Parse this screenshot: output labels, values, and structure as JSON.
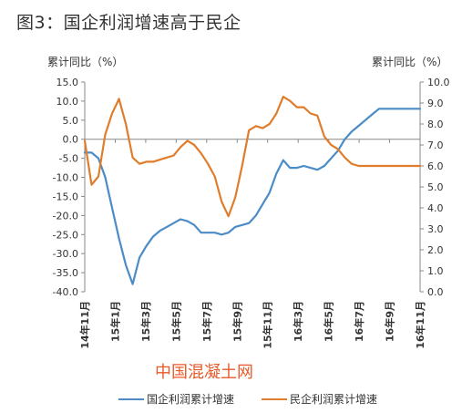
{
  "figure_title": "图3：国企利润增速高于民企",
  "watermark": "中国混凝土网",
  "colors": {
    "series1": "#4a8cc7",
    "series2": "#e07d2c",
    "axis": "#888888",
    "text": "#333333"
  },
  "chart_data": {
    "type": "line",
    "title": "图3：国企利润增速高于民企",
    "y_left_label": "累计同比（%）",
    "y_right_label": "累计同比（%）",
    "y_left_lim": [
      -40,
      15
    ],
    "y_right_lim": [
      0,
      10
    ],
    "y_left_ticks": [
      "15.0",
      "10.0",
      "5.0",
      "0.0",
      "-5.0",
      "-10.0",
      "-15.0",
      "-20.0",
      "-25.0",
      "-30.0",
      "-35.0",
      "-40.0"
    ],
    "y_right_ticks": [
      "10.0",
      "9.0",
      "8.0",
      "7.0",
      "6.0",
      "5.0",
      "4.0",
      "3.0",
      "2.0",
      "1.0",
      "0.0"
    ],
    "x_tick_labels": [
      "14年11月",
      "15年1月",
      "15年3月",
      "15年5月",
      "15年7月",
      "15年9月",
      "15年11月",
      "16年3月",
      "16年5月",
      "16年7月",
      "16年9月",
      "16年11月"
    ],
    "grid": false,
    "legend_position": "bottom",
    "series": [
      {
        "name": "国企利润累计增速",
        "axis": "left",
        "x": [
          0,
          0.5,
          1,
          1.5,
          2,
          2.5,
          3,
          3.5,
          4,
          4.5,
          5,
          5.5,
          6,
          6.5,
          7,
          7.5,
          8,
          8.5,
          9,
          9.5,
          10,
          10.5,
          11,
          11.5,
          12,
          12.5,
          13,
          13.5,
          14,
          14.5,
          15,
          15.5,
          16,
          16.5,
          17,
          17.5,
          18,
          18.5,
          19,
          19.5,
          20,
          20.5,
          21,
          21.5,
          22,
          22.5,
          23,
          23.5,
          24,
          24.5
        ],
        "values": [
          -3.5,
          -3.5,
          -5,
          -10,
          -18,
          -26,
          -33,
          -38,
          -31,
          -28,
          -25.5,
          -24,
          -23,
          -22,
          -21,
          -21.5,
          -22.5,
          -24.5,
          -24.5,
          -24.5,
          -25,
          -24.5,
          -23,
          -22.5,
          -22,
          -20,
          -17,
          -14,
          -9,
          -5.5,
          -7.5,
          -7.5,
          -7,
          -7.5,
          -8,
          -7,
          -5,
          -3,
          0,
          2,
          3.5,
          5,
          6.5,
          8,
          8,
          8,
          8,
          8,
          8,
          8
        ]
      },
      {
        "name": "民企利润累计增速",
        "axis": "right",
        "x": [
          0,
          0.5,
          1,
          1.5,
          2,
          2.5,
          3,
          3.5,
          4,
          4.5,
          5,
          5.5,
          6,
          6.5,
          7,
          7.5,
          8,
          8.5,
          9,
          9.5,
          10,
          10.5,
          11,
          11.5,
          12,
          12.5,
          13,
          13.5,
          14,
          14.5,
          15,
          15.5,
          16,
          16.5,
          17,
          17.5,
          18,
          18.5,
          19,
          19.5,
          20,
          20.5,
          21,
          21.5,
          22,
          22.5,
          23,
          23.5,
          24,
          24.5
        ],
        "values": [
          7.2,
          5.1,
          5.5,
          7.5,
          8.5,
          9.2,
          8.0,
          6.4,
          6.1,
          6.2,
          6.2,
          6.3,
          6.4,
          6.5,
          6.9,
          7.2,
          7.0,
          6.6,
          6.1,
          5.5,
          4.3,
          3.6,
          4.5,
          6.0,
          7.7,
          7.9,
          7.8,
          8.0,
          8.5,
          9.3,
          9.1,
          8.8,
          8.8,
          8.5,
          8.4,
          7.4,
          7.0,
          6.8,
          6.4,
          6.1,
          6.0,
          6.0,
          6.0,
          6.0,
          6.0,
          6.0,
          6.0,
          6.0,
          6.0,
          6.0
        ]
      }
    ]
  }
}
